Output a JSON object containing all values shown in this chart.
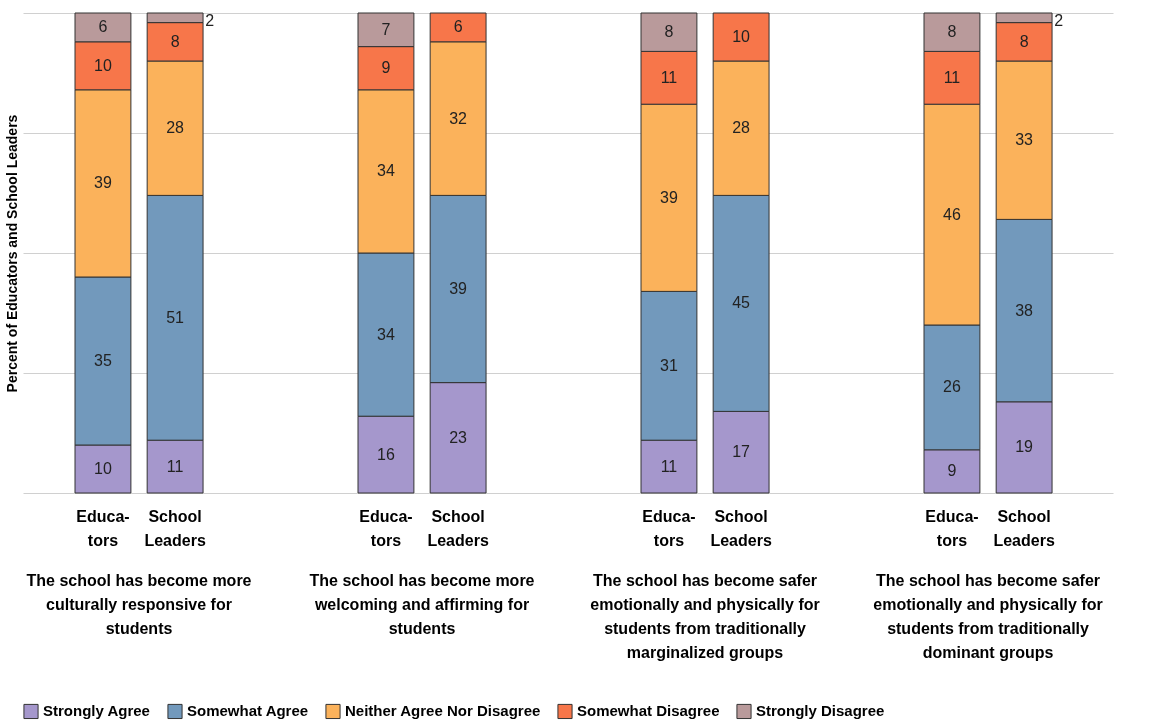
{
  "chart_data": {
    "type": "bar",
    "stacked": true,
    "ylabel": "Percent of Educators and School Leaders",
    "categories": [
      "Educa-\ntors",
      "School\nLeaders",
      "Educa-\ntors",
      "School\nLeaders",
      "Educa-\ntors",
      "School\nLeaders",
      "Educa-\ntors",
      "School\nLeaders"
    ],
    "series": [
      {
        "name": "Strongly Agree",
        "color": "#a597cc",
        "values": [
          10,
          11,
          16,
          23,
          11,
          17,
          9,
          19
        ]
      },
      {
        "name": "Somewhat Agree",
        "color": "#7299bc",
        "values": [
          35,
          51,
          34,
          39,
          31,
          45,
          26,
          38
        ]
      },
      {
        "name": "Neither Agree Nor Disagree",
        "color": "#fbb25b",
        "values": [
          39,
          28,
          34,
          32,
          39,
          28,
          46,
          33
        ]
      },
      {
        "name": "Somewhat Disagree",
        "color": "#f7764a",
        "values": [
          10,
          8,
          9,
          6,
          11,
          10,
          11,
          8
        ]
      },
      {
        "name": "Strongly Disagree",
        "color": "#b99a9b",
        "values": [
          6,
          2,
          7,
          null,
          8,
          null,
          8,
          2
        ]
      }
    ],
    "annotations": [
      "The school has become more culturally responsive for students",
      "The school has become more welcoming and affirming for students",
      "The school has become safer emotionally and physically for students from traditionally marginalized groups",
      "The school has become safer emotionally and physically for students from traditionally dominant groups"
    ],
    "ylim": [
      0,
      100
    ],
    "yticks": [
      {
        "value": 0,
        "label": null
      },
      {
        "value": 25,
        "label": null
      },
      {
        "value": 50,
        "label": null
      },
      {
        "value": 75,
        "label": null
      },
      {
        "value": 100,
        "label": null
      }
    ],
    "grid": "y",
    "tick_labels": "x",
    "data_labels": true,
    "legend": "bottom"
  }
}
